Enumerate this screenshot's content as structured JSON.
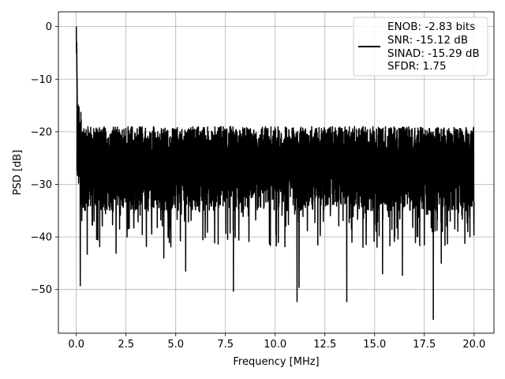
{
  "chart_data": {
    "type": "line",
    "title": "",
    "xlabel": "Frequency [MHz]",
    "ylabel": "PSD [dB]",
    "xlim": [
      -0.9,
      21.0
    ],
    "ylim": [
      -58.3,
      2.8
    ],
    "x_ticks": [
      0.0,
      2.5,
      5.0,
      7.5,
      10.0,
      12.5,
      15.0,
      17.5,
      20.0
    ],
    "x_tick_labels": [
      "0.0",
      "2.5",
      "5.0",
      "7.5",
      "10.0",
      "12.5",
      "15.0",
      "17.5",
      "20.0"
    ],
    "y_ticks": [
      0,
      -10,
      -20,
      -30,
      -40,
      -50
    ],
    "y_tick_labels": [
      "0",
      "−10",
      "−20",
      "−30",
      "−40",
      "−50"
    ],
    "grid": true,
    "legend_position": "top-right",
    "legend_entries": [
      "ENOB: -2.83 bits",
      "SNR: -15.12 dB",
      "SINAD: -15.29 dB",
      "SFDR: 1.75"
    ],
    "series": [
      {
        "name": "ENOB: -2.83 bits\nSNR: -15.12 dB\nSINAD: -15.29 dB\nSFDR: 1.75",
        "color": "#000000",
        "x_range": [
          0.0,
          20.0
        ],
        "peak": {
          "x": 0.0,
          "y": 0.0
        },
        "noise_floor_mean": -26,
        "noise_floor_upper": -19,
        "noise_floor_lower": -35,
        "notable_minima": [
          {
            "x": 0.2,
            "y": -49.3
          },
          {
            "x": 0.55,
            "y": -43.3
          },
          {
            "x": 2.0,
            "y": -43.1
          },
          {
            "x": 4.4,
            "y": -44.0
          },
          {
            "x": 5.5,
            "y": -46.5
          },
          {
            "x": 7.9,
            "y": -50.3
          },
          {
            "x": 11.1,
            "y": -52.3
          },
          {
            "x": 11.2,
            "y": -49.6
          },
          {
            "x": 13.6,
            "y": -52.3
          },
          {
            "x": 15.4,
            "y": -47.0
          },
          {
            "x": 16.4,
            "y": -47.3
          },
          {
            "x": 17.95,
            "y": -55.7
          },
          {
            "x": 18.35,
            "y": -45.0
          }
        ]
      }
    ]
  }
}
